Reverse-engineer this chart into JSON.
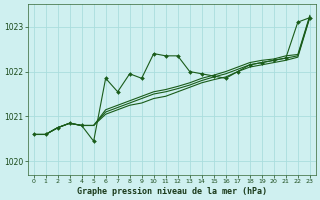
{
  "title": "Graphe pression niveau de la mer (hPa)",
  "background_color": "#cff0f0",
  "grid_color": "#aadddd",
  "line_color": "#1a5c1a",
  "xlim": [
    -0.5,
    23.5
  ],
  "ylim": [
    1019.7,
    1023.5
  ],
  "yticks": [
    1020,
    1021,
    1022,
    1023
  ],
  "xticks": [
    0,
    1,
    2,
    3,
    4,
    5,
    6,
    7,
    8,
    9,
    10,
    11,
    12,
    13,
    14,
    15,
    16,
    17,
    18,
    19,
    20,
    21,
    22,
    23
  ],
  "series_marker": [
    1020.6,
    1020.6,
    1020.75,
    1020.85,
    1020.8,
    1020.45,
    1021.85,
    1021.55,
    1021.95,
    1021.85,
    1022.4,
    1022.35,
    1022.35,
    1022.0,
    1021.95,
    1021.9,
    1021.85,
    1022.0,
    1022.15,
    1022.2,
    1022.25,
    1022.3,
    1023.1,
    1023.2
  ],
  "series_smooth": [
    [
      1020.6,
      1020.6,
      1020.75,
      1020.85,
      1020.8,
      1020.8,
      1021.05,
      1021.15,
      1021.25,
      1021.3,
      1021.4,
      1021.45,
      1021.55,
      1021.65,
      1021.75,
      1021.82,
      1021.88,
      1022.0,
      1022.1,
      1022.15,
      1022.2,
      1022.25,
      1022.32,
      1023.2
    ],
    [
      1020.6,
      1020.6,
      1020.75,
      1020.85,
      1020.8,
      1020.8,
      1021.1,
      1021.2,
      1021.3,
      1021.4,
      1021.5,
      1021.55,
      1021.62,
      1021.7,
      1021.8,
      1021.88,
      1021.95,
      1022.05,
      1022.15,
      1022.2,
      1022.25,
      1022.3,
      1022.35,
      1023.22
    ],
    [
      1020.6,
      1020.6,
      1020.75,
      1020.85,
      1020.8,
      1020.8,
      1021.15,
      1021.25,
      1021.35,
      1021.45,
      1021.55,
      1021.6,
      1021.67,
      1021.75,
      1021.85,
      1021.92,
      1022.0,
      1022.1,
      1022.2,
      1022.25,
      1022.28,
      1022.35,
      1022.38,
      1023.25
    ]
  ]
}
